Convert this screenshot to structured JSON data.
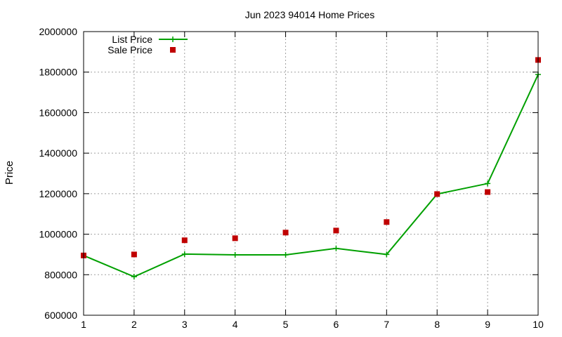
{
  "chart_data": {
    "type": "line",
    "title": "Jun 2023 94014 Home Prices",
    "xlabel": "",
    "ylabel": "Price",
    "x": [
      1,
      2,
      3,
      4,
      5,
      6,
      7,
      8,
      9,
      10
    ],
    "xlim": [
      1,
      10
    ],
    "ylim": [
      600000,
      2000000
    ],
    "xticks": [
      "1",
      "2",
      "3",
      "4",
      "5",
      "6",
      "7",
      "8",
      "9",
      "10"
    ],
    "yticks": [
      "600000",
      "800000",
      "1000000",
      "1200000",
      "1400000",
      "1600000",
      "1800000",
      "2000000"
    ],
    "grid": true,
    "legend_position": "top-left",
    "series": [
      {
        "name": "List Price",
        "kind": "line-with-plus-markers",
        "color": "#00a000",
        "values": [
          895000,
          790000,
          902000,
          898000,
          898000,
          930000,
          900000,
          1198000,
          1250000,
          1788000
        ]
      },
      {
        "name": "Sale Price",
        "kind": "square-points",
        "color": "#c00000",
        "values": [
          895000,
          900000,
          970000,
          980000,
          1008000,
          1018000,
          1060000,
          1198000,
          1208000,
          1860000
        ]
      }
    ]
  }
}
